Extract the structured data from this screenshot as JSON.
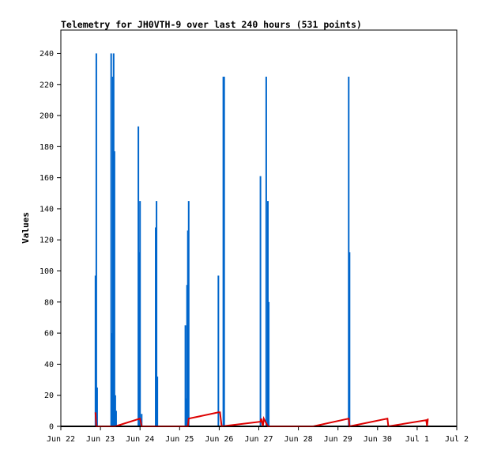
{
  "chart_data": {
    "type": "bar",
    "title": "Telemetry for JH0VTH-9 over last 240 hours (531 points)",
    "xlabel": "",
    "ylabel": "Values",
    "ylim": [
      0,
      255
    ],
    "y_ticks": [
      0,
      20,
      40,
      60,
      80,
      100,
      120,
      140,
      160,
      180,
      200,
      220,
      240
    ],
    "x_ticks": [
      "Jun 22",
      "Jun 23",
      "Jun 24",
      "Jun 25",
      "Jun 26",
      "Jun 27",
      "Jun 28",
      "Jun 29",
      "Jun 30",
      "Jul 1",
      "Jul 2"
    ],
    "x_start": "Jun 22 00:00",
    "grid": false,
    "legend": "none",
    "colors": {
      "bars": "#0066cc",
      "line": "#dd0000",
      "baseline": "#000000"
    },
    "series": [
      {
        "type": "bar",
        "x": [
          "Jun 22 21:00",
          "Jun 22 21:30",
          "Jun 22 22:00",
          "Jun 23 06:30",
          "Jun 23 07:00",
          "Jun 23 07:30",
          "Jun 23 08:00",
          "Jun 23 08:30",
          "Jun 23 09:00",
          "Jun 23 09:30",
          "Jun 23 23:00",
          "Jun 23 23:30",
          "Jun 24 00:00",
          "Jun 24 01:00",
          "Jun 24 09:30",
          "Jun 24 10:00",
          "Jun 24 10:30",
          "Jun 25 03:30",
          "Jun 25 04:00",
          "Jun 25 04:30",
          "Jun 25 05:00",
          "Jun 25 05:30",
          "Jun 25 23:30",
          "Jun 26 02:30",
          "Jun 26 03:00",
          "Jun 27 01:00",
          "Jun 27 04:30",
          "Jun 27 05:30",
          "Jun 27 06:00",
          "Jun 29 06:30",
          "Jun 29 07:00"
        ],
        "values": [
          97,
          240,
          25,
          240,
          60,
          225,
          240,
          177,
          20,
          10,
          193,
          112,
          145,
          8,
          128,
          145,
          32,
          65,
          18,
          91,
          126,
          145,
          97,
          225,
          225,
          161,
          225,
          145,
          80,
          225,
          112
        ]
      },
      {
        "type": "line",
        "x": [
          "Jun 22 21:00",
          "Jun 22 21:30",
          "Jun 23 09:00",
          "Jun 24 00:00",
          "Jun 24 01:00",
          "Jun 25 05:00",
          "Jun 25 05:30",
          "Jun 25 23:30",
          "Jun 26 00:30",
          "Jun 26 01:30",
          "Jun 27 01:00",
          "Jun 27 01:30",
          "Jun 27 02:30",
          "Jun 27 03:00",
          "Jun 27 05:30",
          "Jun 28 09:00",
          "Jun 29 06:30",
          "Jun 29 07:00",
          "Jun 30 06:00",
          "Jun 30 06:30",
          "Jul 1 05:30",
          "Jul 1 06:00",
          "Jul 1 06:30"
        ],
        "values": [
          9,
          0,
          0,
          5,
          0,
          0,
          5,
          9,
          9,
          0,
          3,
          5,
          0,
          5,
          0,
          0,
          5,
          0,
          5,
          0,
          4,
          0,
          5
        ]
      }
    ]
  }
}
